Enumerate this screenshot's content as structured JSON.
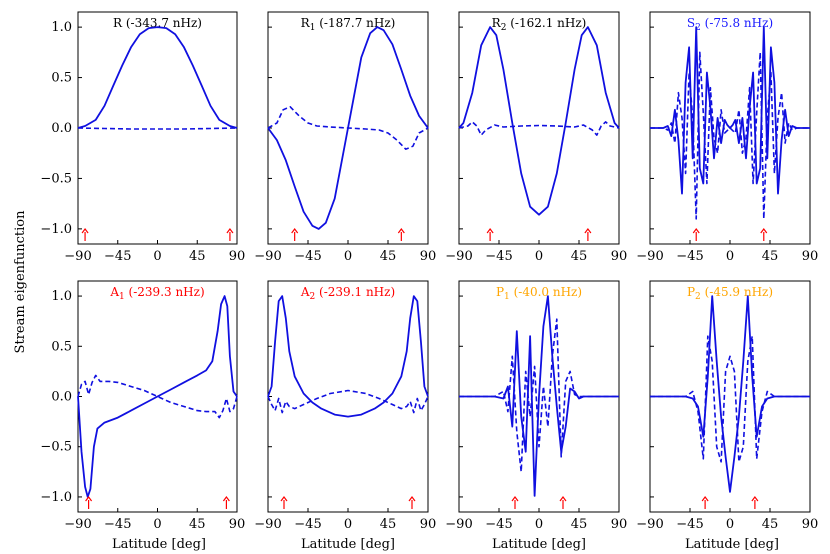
{
  "figure": {
    "ylabel": "Stream eigenfunction",
    "xlabel": "Latitude [deg]"
  },
  "chart_data": [
    {
      "type": "line",
      "title": "R (-343.7 nHz)",
      "title_main": "R",
      "title_sub": "",
      "title_rest": " (-343.7 nHz)",
      "title_color": "#000000",
      "xlim": [
        -90,
        90
      ],
      "ylim": [
        -1.15,
        1.15
      ],
      "xticks": [
        "−90",
        "−45",
        "0",
        "45",
        "90"
      ],
      "yticks": [
        "1.0",
        "0.5",
        "0.0",
        "−0.5",
        "−1.0"
      ],
      "arrows": [
        -82,
        82
      ],
      "solid": {
        "x": [
          -90,
          -82,
          -70,
          -60,
          -50,
          -40,
          -30,
          -20,
          -10,
          0,
          10,
          20,
          30,
          40,
          50,
          60,
          70,
          82,
          90
        ],
        "y": [
          0,
          0.02,
          0.08,
          0.22,
          0.42,
          0.62,
          0.8,
          0.93,
          0.99,
          1.0,
          0.99,
          0.93,
          0.8,
          0.62,
          0.42,
          0.22,
          0.08,
          0.02,
          0
        ]
      },
      "dashed": {
        "x": [
          -90,
          -60,
          -30,
          0,
          30,
          60,
          90
        ],
        "y": [
          0,
          -0.005,
          -0.01,
          -0.01,
          -0.01,
          -0.005,
          0
        ]
      }
    },
    {
      "type": "line",
      "title": "R1 (-187.7 nHz)",
      "title_main": "R",
      "title_sub": "1",
      "title_rest": " (-187.7 nHz)",
      "title_color": "#000000",
      "xlim": [
        -90,
        90
      ],
      "ylim": [
        -1.15,
        1.15
      ],
      "xticks": [
        "−90",
        "−45",
        "0",
        "45",
        "90"
      ],
      "yticks": [],
      "arrows": [
        -60,
        60
      ],
      "solid": {
        "x": [
          -90,
          -80,
          -70,
          -60,
          -50,
          -40,
          -33,
          -25,
          -15,
          0,
          15,
          25,
          33,
          40,
          50,
          60,
          70,
          80,
          90
        ],
        "y": [
          0,
          -0.12,
          -0.32,
          -0.58,
          -0.83,
          -0.97,
          -1.0,
          -0.94,
          -0.7,
          0,
          0.7,
          0.94,
          1.0,
          0.97,
          0.83,
          0.58,
          0.32,
          0.12,
          0
        ]
      },
      "dashed": {
        "x": [
          -90,
          -80,
          -73,
          -65,
          -55,
          -45,
          -35,
          -20,
          0,
          20,
          35,
          45,
          55,
          65,
          73,
          80,
          90
        ],
        "y": [
          0,
          0.05,
          0.18,
          0.21,
          0.12,
          0.05,
          0.02,
          0.01,
          0,
          -0.01,
          -0.02,
          -0.05,
          -0.12,
          -0.21,
          -0.18,
          -0.05,
          0
        ]
      }
    },
    {
      "type": "line",
      "title": "R2 (-162.1 nHz)",
      "title_main": "R",
      "title_sub": "2",
      "title_rest": " (-162.1 nHz)",
      "title_color": "#000000",
      "xlim": [
        -90,
        90
      ],
      "ylim": [
        -1.15,
        1.15
      ],
      "xticks": [
        "−90",
        "−45",
        "0",
        "45",
        "90"
      ],
      "yticks": [],
      "arrows": [
        -55,
        55
      ],
      "solid": {
        "x": [
          -90,
          -85,
          -75,
          -65,
          -55,
          -48,
          -40,
          -30,
          -20,
          -10,
          0,
          10,
          20,
          30,
          40,
          48,
          55,
          65,
          75,
          85,
          90
        ],
        "y": [
          0,
          0.05,
          0.35,
          0.82,
          1.0,
          0.92,
          0.58,
          0.05,
          -0.45,
          -0.78,
          -0.86,
          -0.78,
          -0.45,
          0.05,
          0.58,
          0.92,
          1.0,
          0.82,
          0.35,
          0.05,
          0
        ]
      },
      "dashed": {
        "x": [
          -90,
          -80,
          -75,
          -70,
          -65,
          -60,
          -50,
          -40,
          -20,
          0,
          20,
          40,
          50,
          60,
          65,
          70,
          75,
          80,
          90
        ],
        "y": [
          0,
          0.02,
          0.06,
          0.02,
          -0.07,
          -0.02,
          0.03,
          0.01,
          0.02,
          0.025,
          0.02,
          0.01,
          0.03,
          -0.02,
          -0.07,
          0.02,
          0.06,
          0.02,
          0
        ]
      }
    },
    {
      "type": "line",
      "title": "S2 (-75.8 nHz)",
      "title_main": "S",
      "title_sub": "2",
      "title_rest": " (-75.8 nHz)",
      "title_color": "#1a1aff",
      "xlim": [
        -90,
        90
      ],
      "ylim": [
        -1.15,
        1.15
      ],
      "xticks": [
        "−90",
        "−45",
        "0",
        "45",
        "90"
      ],
      "yticks": [],
      "arrows": [
        -38,
        38
      ],
      "solid": {
        "x": [
          -90,
          -75,
          -70,
          -66,
          -62,
          -58,
          -54,
          -50,
          -46,
          -42,
          -38,
          -34,
          -30,
          -26,
          -22,
          -18,
          -14,
          -10,
          -6,
          -3,
          0,
          3,
          6,
          10,
          14,
          18,
          22,
          26,
          30,
          34,
          38,
          42,
          46,
          50,
          54,
          58,
          62,
          66,
          70,
          75,
          90
        ],
        "y": [
          0,
          0,
          0.02,
          -0.08,
          0.18,
          -0.12,
          -0.65,
          0.45,
          0.8,
          -0.3,
          1.0,
          -0.4,
          -0.55,
          0.55,
          0.2,
          -0.3,
          0.1,
          -0.15,
          0.08,
          0.03,
          0,
          0.03,
          0.08,
          -0.15,
          0.1,
          -0.3,
          0.2,
          0.55,
          -0.55,
          -0.4,
          1.0,
          -0.3,
          0.8,
          0.45,
          -0.65,
          -0.12,
          0.18,
          -0.08,
          0.02,
          0,
          0
        ]
      },
      "dashed": {
        "x": [
          -90,
          -75,
          -70,
          -66,
          -62,
          -58,
          -54,
          -50,
          -46,
          -42,
          -38,
          -34,
          -30,
          -26,
          -22,
          -18,
          -14,
          -10,
          -6,
          0,
          6,
          10,
          14,
          18,
          22,
          26,
          30,
          34,
          38,
          42,
          46,
          50,
          54,
          58,
          62,
          66,
          70,
          75,
          90
        ],
        "y": [
          0,
          0,
          -0.02,
          0.05,
          -0.15,
          0.35,
          0.1,
          -0.45,
          0.55,
          0.1,
          -0.9,
          0.75,
          0.15,
          -0.55,
          0.4,
          -0.1,
          -0.25,
          0.18,
          -0.05,
          0,
          -0.05,
          0.18,
          -0.25,
          -0.1,
          0.4,
          -0.55,
          0.15,
          0.75,
          -0.9,
          0.1,
          0.55,
          -0.45,
          0.1,
          0.35,
          -0.15,
          0.05,
          -0.02,
          0,
          0
        ]
      }
    },
    {
      "type": "line",
      "title": "A1 (-239.3 nHz)",
      "title_main": "A",
      "title_sub": "1",
      "title_rest": " (-239.3 nHz)",
      "title_color": "#ff0000",
      "xlim": [
        -90,
        90
      ],
      "ylim": [
        -1.15,
        1.15
      ],
      "xticks": [
        "−90",
        "−45",
        "0",
        "45",
        "90"
      ],
      "yticks": [
        "1.0",
        "0.5",
        "0.0",
        "−0.5",
        "−1.0"
      ],
      "arrows": [
        -78,
        78
      ],
      "solid": {
        "x": [
          -90,
          -86,
          -82,
          -79,
          -76,
          -72,
          -68,
          -60,
          -45,
          -30,
          -15,
          0,
          15,
          30,
          45,
          55,
          62,
          68,
          72,
          76,
          79,
          82,
          86,
          90
        ],
        "y": [
          0,
          -0.55,
          -0.9,
          -1.0,
          -0.92,
          -0.5,
          -0.32,
          -0.26,
          -0.21,
          -0.14,
          -0.07,
          0,
          0.07,
          0.14,
          0.21,
          0.26,
          0.35,
          0.65,
          0.92,
          1.0,
          0.9,
          0.4,
          0.05,
          0
        ]
      },
      "dashed": {
        "x": [
          -90,
          -86,
          -82,
          -78,
          -74,
          -70,
          -65,
          -55,
          -45,
          -30,
          -15,
          0,
          15,
          30,
          45,
          55,
          65,
          70,
          74,
          78,
          82,
          86,
          90
        ],
        "y": [
          0,
          0.12,
          0.15,
          0.02,
          0.14,
          0.21,
          0.15,
          0.15,
          0.14,
          0.1,
          0.06,
          0,
          -0.06,
          -0.1,
          -0.14,
          -0.15,
          -0.15,
          -0.21,
          -0.14,
          -0.02,
          -0.15,
          -0.12,
          0
        ]
      }
    },
    {
      "type": "line",
      "title": "A2 (-239.1 nHz)",
      "title_main": "A",
      "title_sub": "2",
      "title_rest": " (-239.1 nHz)",
      "title_color": "#ff0000",
      "xlim": [
        -90,
        90
      ],
      "ylim": [
        -1.15,
        1.15
      ],
      "xticks": [
        "−90",
        "−45",
        "0",
        "45",
        "90"
      ],
      "yticks": [],
      "arrows": [
        -72,
        72
      ],
      "solid": {
        "x": [
          -90,
          -86,
          -82,
          -78,
          -74,
          -70,
          -66,
          -60,
          -50,
          -40,
          -30,
          -15,
          0,
          15,
          30,
          40,
          50,
          60,
          66,
          70,
          74,
          78,
          82,
          86,
          90
        ],
        "y": [
          0,
          0.1,
          0.55,
          0.95,
          1.0,
          0.78,
          0.45,
          0.2,
          0.03,
          -0.06,
          -0.12,
          -0.18,
          -0.2,
          -0.18,
          -0.12,
          -0.06,
          0.03,
          0.2,
          0.45,
          0.78,
          1.0,
          0.95,
          0.55,
          0.1,
          0
        ]
      },
      "dashed": {
        "x": [
          -90,
          -86,
          -82,
          -78,
          -74,
          -70,
          -66,
          -60,
          -50,
          -35,
          -20,
          0,
          20,
          35,
          50,
          60,
          66,
          70,
          74,
          78,
          82,
          86,
          90
        ],
        "y": [
          0,
          -0.08,
          -0.14,
          -0.02,
          -0.16,
          -0.05,
          -0.1,
          -0.12,
          -0.08,
          -0.02,
          0.03,
          0.06,
          0.03,
          -0.02,
          -0.08,
          -0.12,
          -0.1,
          -0.05,
          -0.16,
          -0.02,
          -0.14,
          -0.08,
          0
        ]
      }
    },
    {
      "type": "line",
      "title": "P1 (-40.0 nHz)",
      "title_main": "P",
      "title_sub": "1",
      "title_rest": " (-40.0 nHz)",
      "title_color": "#ffa500",
      "xlim": [
        -90,
        90
      ],
      "ylim": [
        -1.15,
        1.15
      ],
      "xticks": [
        "−90",
        "−45",
        "0",
        "45",
        "90"
      ],
      "yticks": [],
      "arrows": [
        -27,
        27
      ],
      "solid": {
        "x": [
          -90,
          -50,
          -40,
          -35,
          -30,
          -25,
          -20,
          -15,
          -10,
          -5,
          0,
          5,
          10,
          15,
          20,
          25,
          30,
          35,
          40,
          45,
          50,
          90
        ],
        "y": [
          0,
          0,
          -0.02,
          0.1,
          -0.3,
          0.65,
          -0.2,
          -0.55,
          0.6,
          -0.99,
          0,
          0.7,
          1.0,
          0.4,
          -0.1,
          -0.55,
          -0.3,
          0.08,
          0.05,
          -0.02,
          0,
          0
        ]
      },
      "dashed": {
        "x": [
          -90,
          -50,
          -40,
          -35,
          -30,
          -25,
          -20,
          -15,
          -10,
          -5,
          0,
          5,
          10,
          15,
          20,
          25,
          30,
          35,
          40,
          45,
          50,
          90
        ],
        "y": [
          0,
          0,
          0.05,
          -0.15,
          0.4,
          -0.35,
          -0.75,
          0.25,
          -0.2,
          0.3,
          -0.5,
          0.1,
          -0.3,
          0.4,
          0.77,
          -0.6,
          0.15,
          0.25,
          0.02,
          0,
          0,
          0
        ]
      }
    },
    {
      "type": "line",
      "title": "P2 (-45.9 nHz)",
      "title_main": "P",
      "title_sub": "2",
      "title_rest": " (-45.9 nHz)",
      "title_color": "#ffa500",
      "xlim": [
        -90,
        90
      ],
      "ylim": [
        -1.15,
        1.15
      ],
      "xticks": [
        "−90",
        "−45",
        "0",
        "45",
        "90"
      ],
      "yticks": [],
      "arrows": [
        -28,
        28
      ],
      "solid": {
        "x": [
          -90,
          -50,
          -42,
          -36,
          -30,
          -25,
          -20,
          -15,
          -10,
          -5,
          0,
          5,
          10,
          15,
          20,
          25,
          30,
          36,
          42,
          50,
          90
        ],
        "y": [
          0,
          0,
          -0.02,
          -0.1,
          -0.4,
          0.2,
          1.0,
          0.35,
          -0.2,
          -0.6,
          -0.95,
          -0.6,
          -0.2,
          0.35,
          1.0,
          0.2,
          -0.4,
          -0.1,
          -0.02,
          0,
          0
        ]
      },
      "dashed": {
        "x": [
          -90,
          -50,
          -42,
          -36,
          -30,
          -25,
          -20,
          -15,
          -10,
          -5,
          0,
          5,
          10,
          15,
          20,
          25,
          30,
          36,
          42,
          50,
          90
        ],
        "y": [
          0,
          0,
          0.05,
          -0.15,
          -0.62,
          0.6,
          0.35,
          -0.5,
          -0.65,
          0.25,
          0.4,
          0.25,
          -0.65,
          -0.5,
          0.35,
          0.6,
          -0.62,
          -0.15,
          0.05,
          0,
          0
        ]
      }
    }
  ]
}
